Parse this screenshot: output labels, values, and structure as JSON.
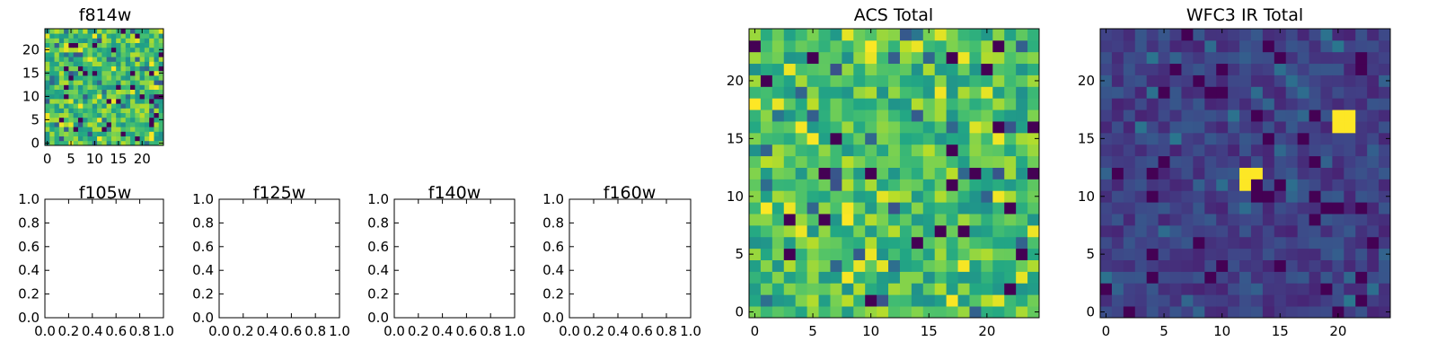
{
  "chart_data": [
    {
      "type": "heatmap",
      "title": "f814w",
      "grid_size": 25,
      "xlim": [
        -0.5,
        24.5
      ],
      "ylim": [
        -0.5,
        24.5
      ],
      "xticks": [
        0,
        5,
        10,
        15,
        20
      ],
      "yticks": [
        0,
        5,
        10,
        15,
        20
      ],
      "colormap": "viridis",
      "color_range": [
        0,
        1
      ],
      "values_note_seed": 814,
      "value_profile": "mostly-high"
    },
    {
      "type": "heatmap",
      "title": "f105w",
      "xlim": [
        0.0,
        1.0
      ],
      "ylim": [
        0.0,
        1.0
      ],
      "xticks": [
        0.0,
        0.2,
        0.4,
        0.6,
        0.8,
        1.0
      ],
      "yticks": [
        0.0,
        0.2,
        0.4,
        0.6,
        0.8,
        1.0
      ],
      "tick_labels": [
        "0.0",
        "0.2",
        "0.4",
        "0.6",
        "0.8",
        "1.0"
      ],
      "empty": true
    },
    {
      "type": "heatmap",
      "title": "f125w",
      "xlim": [
        0.0,
        1.0
      ],
      "ylim": [
        0.0,
        1.0
      ],
      "xticks": [
        0.0,
        0.2,
        0.4,
        0.6,
        0.8,
        1.0
      ],
      "yticks": [
        0.0,
        0.2,
        0.4,
        0.6,
        0.8,
        1.0
      ],
      "tick_labels": [
        "0.0",
        "0.2",
        "0.4",
        "0.6",
        "0.8",
        "1.0"
      ],
      "empty": true
    },
    {
      "type": "heatmap",
      "title": "f140w",
      "xlim": [
        0.0,
        1.0
      ],
      "ylim": [
        0.0,
        1.0
      ],
      "xticks": [
        0.0,
        0.2,
        0.4,
        0.6,
        0.8,
        1.0
      ],
      "yticks": [
        0.0,
        0.2,
        0.4,
        0.6,
        0.8,
        1.0
      ],
      "tick_labels": [
        "0.0",
        "0.2",
        "0.4",
        "0.6",
        "0.8",
        "1.0"
      ],
      "empty": true
    },
    {
      "type": "heatmap",
      "title": "f160w",
      "xlim": [
        0.0,
        1.0
      ],
      "ylim": [
        0.0,
        1.0
      ],
      "xticks": [
        0.0,
        0.2,
        0.4,
        0.6,
        0.8,
        1.0
      ],
      "yticks": [
        0.0,
        0.2,
        0.4,
        0.6,
        0.8,
        1.0
      ],
      "tick_labels": [
        "0.0",
        "0.2",
        "0.4",
        "0.6",
        "0.8",
        "1.0"
      ],
      "empty": true
    },
    {
      "type": "heatmap",
      "title": "ACS Total",
      "grid_size": 25,
      "xlim": [
        -0.5,
        24.5
      ],
      "ylim": [
        -0.5,
        24.5
      ],
      "xticks": [
        0,
        5,
        10,
        15,
        20
      ],
      "yticks": [
        0,
        5,
        10,
        15,
        20
      ],
      "colormap": "viridis",
      "color_range": [
        0,
        1
      ],
      "values_note_seed": 777,
      "value_profile": "mostly-high"
    },
    {
      "type": "heatmap",
      "title": "WFC3 IR Total",
      "grid_size": 25,
      "xlim": [
        -0.5,
        24.5
      ],
      "ylim": [
        -0.5,
        24.5
      ],
      "xticks": [
        0,
        5,
        10,
        15,
        20
      ],
      "yticks": [
        0,
        5,
        10,
        15,
        20
      ],
      "colormap": "viridis",
      "color_range": [
        0,
        1
      ],
      "values_note_seed": 160,
      "value_profile": "mostly-low",
      "bright_cells": [
        [
          20,
          16
        ],
        [
          21,
          16
        ],
        [
          20,
          17
        ],
        [
          21,
          17
        ],
        [
          12,
          12
        ],
        [
          13,
          12
        ],
        [
          12,
          11
        ]
      ]
    }
  ]
}
